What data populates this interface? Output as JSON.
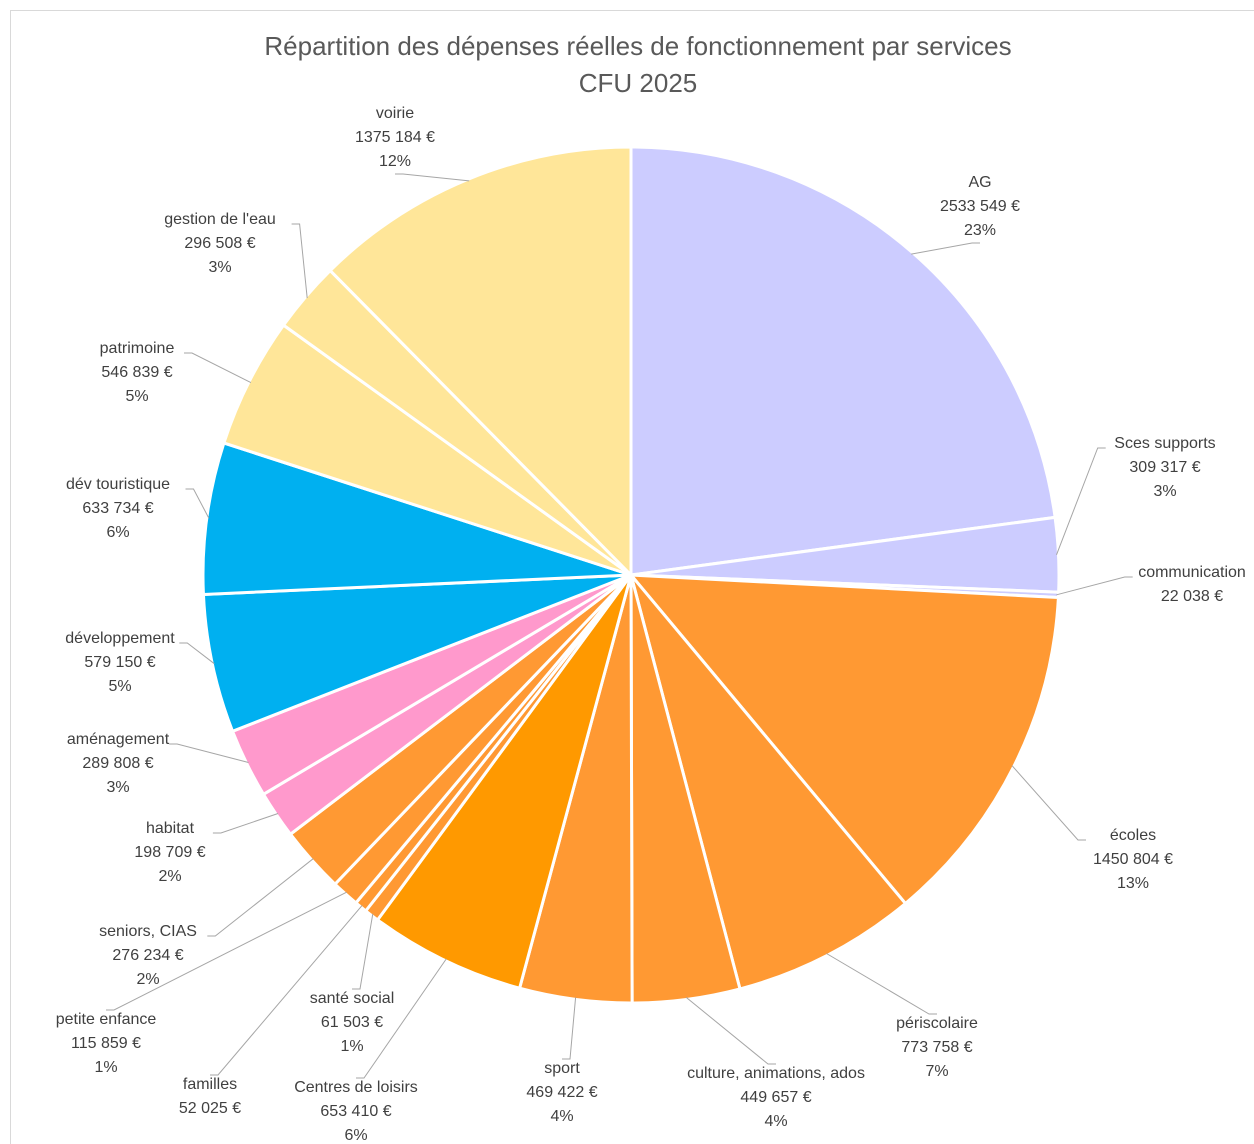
{
  "chart_data": {
    "type": "pie",
    "title": "Répartition des dépenses réelles de fonctionnement par services",
    "subtitle": "CFU 2025",
    "currency": "€",
    "legend": "none",
    "slices": [
      {
        "label": "AG",
        "value": 2533549,
        "value_text": "2533 549 €",
        "percent": "23%",
        "color": "#ccccff"
      },
      {
        "label": "Sces supports",
        "value": 309317,
        "value_text": "309 317 €",
        "percent": "3%",
        "color": "#ccccff"
      },
      {
        "label": "communication",
        "value": 22038,
        "value_text": "22 038 €",
        "percent": "",
        "color": "#ccccff"
      },
      {
        "label": "écoles",
        "value": 1450804,
        "value_text": "1450 804 €",
        "percent": "13%",
        "color": "#ff9933"
      },
      {
        "label": "périscolaire",
        "value": 773758,
        "value_text": "773 758 €",
        "percent": "7%",
        "color": "#ff9933"
      },
      {
        "label": "culture, animations, ados",
        "value": 449657,
        "value_text": "449 657 €",
        "percent": "4%",
        "color": "#ff9933"
      },
      {
        "label": "sport",
        "value": 469422,
        "value_text": "469 422 €",
        "percent": "4%",
        "color": "#ff9933"
      },
      {
        "label": "Centres de loisirs",
        "value": 653410,
        "value_text": "653 410 €",
        "percent": "6%",
        "color": "#ff9900"
      },
      {
        "label": "santé social",
        "value": 61503,
        "value_text": "61 503 €",
        "percent": "1%",
        "color": "#ff9933"
      },
      {
        "label": "familles",
        "value": 52025,
        "value_text": "52 025 €",
        "percent": "",
        "color": "#ff9933"
      },
      {
        "label": "petite enfance",
        "value": 115859,
        "value_text": "115 859 €",
        "percent": "1%",
        "color": "#ff9933"
      },
      {
        "label": "seniors, CIAS",
        "value": 276234,
        "value_text": "276 234 €",
        "percent": "2%",
        "color": "#ff9933"
      },
      {
        "label": "habitat",
        "value": 198709,
        "value_text": "198 709 €",
        "percent": "2%",
        "color": "#ff99cc"
      },
      {
        "label": "aménagement",
        "value": 289808,
        "value_text": "289 808 €",
        "percent": "3%",
        "color": "#ff99cc"
      },
      {
        "label": "développement",
        "value": 579150,
        "value_text": "579 150 €",
        "percent": "5%",
        "color": "#00b0f0"
      },
      {
        "label": "dév touristique",
        "value": 633734,
        "value_text": "633 734 €",
        "percent": "6%",
        "color": "#00b0f0"
      },
      {
        "label": "patrimoine",
        "value": 546839,
        "value_text": "546 839 €",
        "percent": "5%",
        "color": "#ffe699"
      },
      {
        "label": "gestion de l'eau",
        "value": 296508,
        "value_text": "296 508 €",
        "percent": "3%",
        "color": "#ffe699"
      },
      {
        "label": "voirie",
        "value": 1375184,
        "value_text": "1375 184 €",
        "percent": "12%",
        "color": "#ffe699"
      }
    ]
  }
}
